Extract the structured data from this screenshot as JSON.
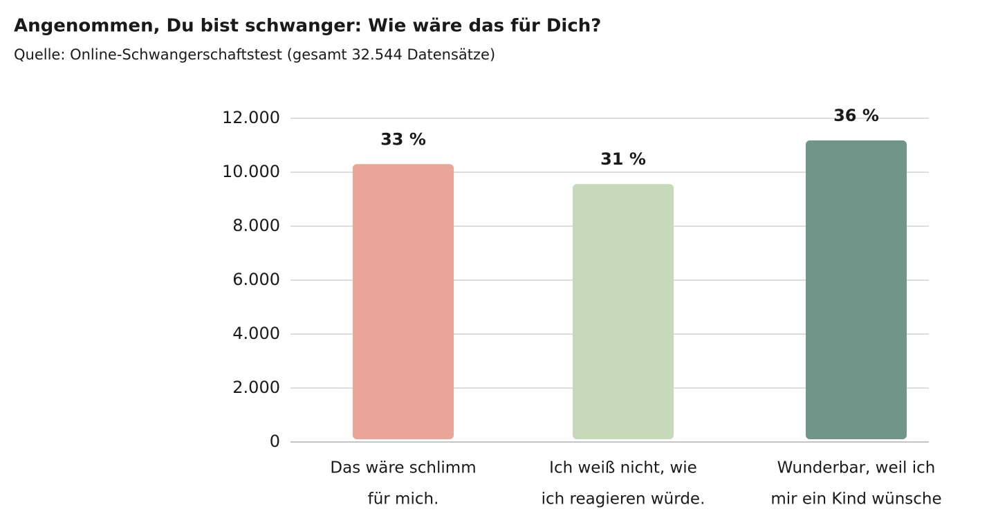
{
  "chart_data": {
    "type": "bar",
    "title": "Angenommen, Du bist schwanger: Wie wäre das für Dich?",
    "subtitle": "Quelle: Online-Schwangerschaftstest (gesamt 32.544 Datensätze)",
    "categories": [
      [
        "Das wäre schlimm",
        "für mich."
      ],
      [
        "Ich weiß nicht, wie",
        "ich reagieren würde."
      ],
      [
        "Wunderbar, weil ich",
        "mir ein Kind wünsche"
      ]
    ],
    "values": [
      10300,
      9560,
      11180
    ],
    "annotations": [
      "33 %",
      "31 %",
      "36 %"
    ],
    "colors": [
      "#e8a598",
      "#c6d9b8",
      "#6f9688"
    ],
    "ylim": [
      0,
      12000
    ],
    "yticks": [
      0,
      {
        "value": 2000,
        "label": "2.000"
      },
      {
        "value": 4000,
        "label": "4.000"
      },
      {
        "value": 6000,
        "label": "6.000"
      },
      {
        "value": 8000,
        "label": "8.000"
      },
      {
        "value": 10000,
        "label": "10.000"
      },
      {
        "value": 12000,
        "label": "12.000"
      }
    ],
    "grid": true
  }
}
